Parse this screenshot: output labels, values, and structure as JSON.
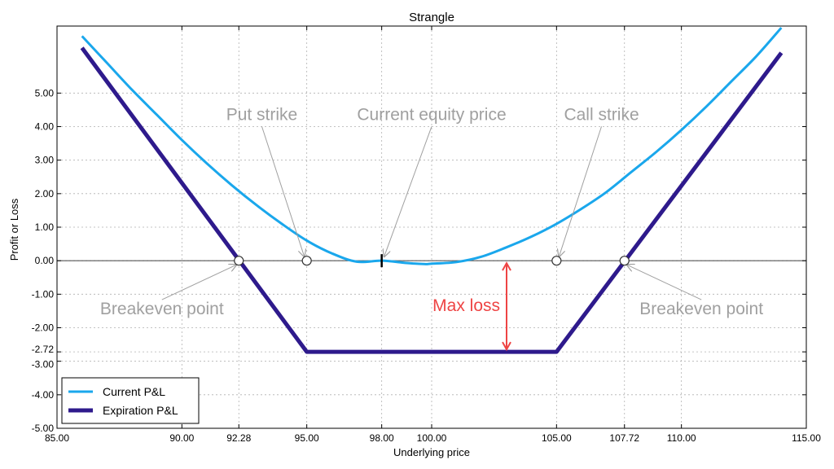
{
  "chart_data": {
    "type": "line",
    "title": "Strangle",
    "xlabel": "Underlying price",
    "ylabel": "Profit or Loss",
    "xlim": [
      85,
      115
    ],
    "ylim": [
      -5,
      7.0
    ],
    "x_ticks": [
      {
        "value": 85,
        "label": "85.00"
      },
      {
        "value": 90,
        "label": "90.00"
      },
      {
        "value": 92.28,
        "label": "92.28"
      },
      {
        "value": 95,
        "label": "95.00"
      },
      {
        "value": 98,
        "label": "98.00"
      },
      {
        "value": 100,
        "label": "100.00"
      },
      {
        "value": 105,
        "label": "105.00"
      },
      {
        "value": 107.72,
        "label": "107.72"
      },
      {
        "value": 110,
        "label": "110.00"
      },
      {
        "value": 115,
        "label": "115.00"
      }
    ],
    "y_ticks": [
      {
        "value": 5,
        "label": "5.00"
      },
      {
        "value": 4,
        "label": "4.00"
      },
      {
        "value": 3,
        "label": "3.00"
      },
      {
        "value": 2,
        "label": "2.00"
      },
      {
        "value": 1,
        "label": "1.00"
      },
      {
        "value": 0,
        "label": "0.00"
      },
      {
        "value": -1,
        "label": "-1.00"
      },
      {
        "value": -2,
        "label": "-2.00"
      },
      {
        "value": -2.72,
        "label": "-2.72"
      },
      {
        "value": -3,
        "label": "-3.00"
      },
      {
        "value": -4,
        "label": "-4.00"
      },
      {
        "value": -5,
        "label": "-5.00"
      }
    ],
    "grid": true,
    "legend_position": "bottom-left",
    "series": [
      {
        "name": "Current P&L",
        "color": "#1aa7ec",
        "x": [
          86,
          87,
          88,
          89,
          90,
          91,
          92,
          93,
          94,
          95,
          96,
          97,
          98,
          99,
          99.7,
          100,
          101,
          102,
          103,
          104,
          105,
          106,
          107,
          108,
          109,
          110,
          111,
          112,
          113,
          114
        ],
        "y": [
          6.7,
          5.9,
          5.1,
          4.35,
          3.6,
          2.9,
          2.25,
          1.65,
          1.1,
          0.6,
          0.22,
          -0.03,
          0.0,
          -0.07,
          -0.1,
          -0.09,
          -0.04,
          0.12,
          0.4,
          0.72,
          1.1,
          1.55,
          2.05,
          2.65,
          3.25,
          3.9,
          4.6,
          5.35,
          6.1,
          6.95
        ]
      },
      {
        "name": "Expiration P&L",
        "color": "#2e1a8c",
        "x": [
          86,
          95,
          105,
          114
        ],
        "y": [
          6.35,
          -2.72,
          -2.72,
          6.2
        ]
      }
    ],
    "markers": [
      {
        "x": 92.28,
        "y": 0
      },
      {
        "x": 95,
        "y": 0
      },
      {
        "x": 105,
        "y": 0
      },
      {
        "x": 107.72,
        "y": 0
      }
    ],
    "current_price_marker": {
      "x": 98,
      "y": 0
    },
    "annotations": [
      {
        "text": "Put strike",
        "x": 95,
        "y": 0,
        "text_x": 93.2,
        "text_y": 4.2,
        "color": "#a0a0a0"
      },
      {
        "text": "Current equity price",
        "x": 98,
        "y": 0,
        "text_x": 100.0,
        "text_y": 4.2,
        "color": "#a0a0a0"
      },
      {
        "text": "Call strike",
        "x": 105,
        "y": 0,
        "text_x": 106.8,
        "text_y": 4.2,
        "color": "#a0a0a0"
      },
      {
        "text": "Breakeven point",
        "x": 92.28,
        "y": 0,
        "text_x": 89.2,
        "text_y": -1.6,
        "color": "#a0a0a0"
      },
      {
        "text": "Breakeven point",
        "x": 107.72,
        "y": 0,
        "text_x": 110.8,
        "text_y": -1.6,
        "color": "#a0a0a0"
      }
    ],
    "max_loss": {
      "text": "Max loss",
      "x": 103,
      "y_top": 0,
      "y_bottom": -2.72,
      "color": "#ee4444"
    }
  }
}
